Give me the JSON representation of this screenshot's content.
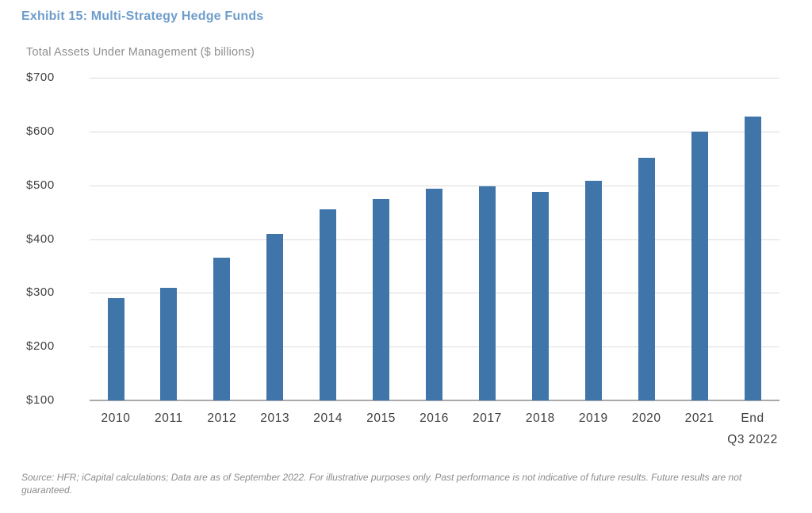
{
  "exhibit": {
    "title": "Exhibit 15: Multi-Strategy Hedge Funds",
    "subtitle": "Total Assets Under Management ($ billions)",
    "source_note": "Source: HFR; iCapital calculations; Data are as of September 2022. For illustrative purposes only. Past performance is not indicative of future results. Future results are not guaranteed."
  },
  "chart_data": {
    "type": "bar",
    "title": "Total Assets Under Management ($ billions)",
    "categories": [
      "2010",
      "2011",
      "2012",
      "2013",
      "2014",
      "2015",
      "2016",
      "2017",
      "2018",
      "2019",
      "2020",
      "2021",
      "End Q3 2022"
    ],
    "tick_labels": [
      "2010",
      "2011",
      "2012",
      "2013",
      "2014",
      "2015",
      "2016",
      "2017",
      "2018",
      "2019",
      "2020",
      "2021",
      "End\nQ3 2022"
    ],
    "values": [
      290,
      310,
      365,
      410,
      456,
      475,
      494,
      498,
      487,
      508,
      551,
      600,
      628
    ],
    "xlabel": "",
    "ylabel": "Total Assets Under Management ($ billions)",
    "ylim": [
      100,
      700
    ],
    "ytick_interval": 100,
    "ytick_prefix": "$",
    "grid": true,
    "legend": false,
    "bar_color": "#3F75A9"
  },
  "colors": {
    "title": "#6E9DCB",
    "subtitle": "#8E8E8E",
    "axis_labels": "#3F3F3F",
    "gridline": "#DBDBDB",
    "axis_line": "#A9A9A9",
    "bar": "#3F75A9",
    "source": "#8C8C8C"
  }
}
